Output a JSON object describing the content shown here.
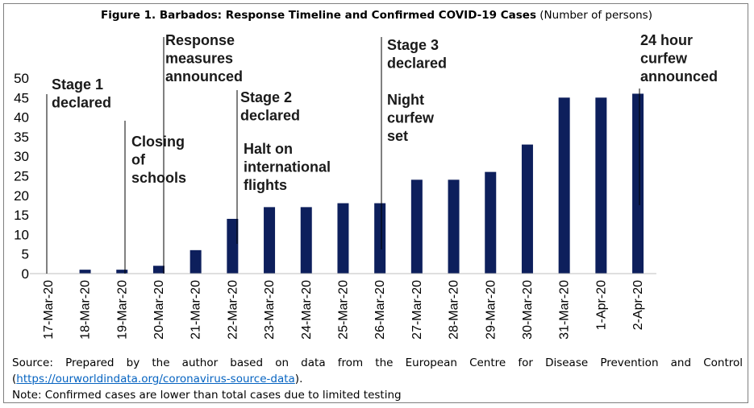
{
  "figure": {
    "title_bold": "Figure 1. Barbados: Response Timeline and Confirmed COVID-19 Cases",
    "title_rest": " (Number of persons)",
    "source_prefix": "Source: Prepared by the author based on data from the European Centre for Disease Prevention and Control (",
    "source_link": "https://ourworldindata.org/coronavirus-source-data",
    "source_suffix": ").",
    "note": "Note: Confirmed cases are lower than total cases due to limited testing"
  },
  "chart_data": {
    "type": "bar",
    "title": "Figure 1. Barbados: Response Timeline and Confirmed COVID-19 Cases (Number of persons)",
    "xlabel": "",
    "ylabel": "",
    "ylim": [
      0,
      50
    ],
    "yticks": [
      "0",
      "5",
      "10",
      "15",
      "20",
      "25",
      "30",
      "35",
      "40",
      "45",
      "50"
    ],
    "grid": false,
    "bar_color": "#0d1f5c",
    "categories": [
      "17-Mar-20",
      "18-Mar-20",
      "19-Mar-20",
      "20-Mar-20",
      "21-Mar-20",
      "22-Mar-20",
      "23-Mar-20",
      "24-Mar-20",
      "25-Mar-20",
      "26-Mar-20",
      "27-Mar-20",
      "28-Mar-20",
      "29-Mar-20",
      "30-Mar-20",
      "31-Mar-20",
      "1-Apr-20",
      "2-Apr-20"
    ],
    "values": [
      0,
      1,
      1,
      2,
      6,
      14,
      17,
      17,
      18,
      18,
      24,
      24,
      26,
      33,
      45,
      45,
      46
    ],
    "annotations": [
      {
        "category": "17-Mar-20",
        "lines": [
          "Stage 1",
          "declared"
        ]
      },
      {
        "category": "19-Mar-20",
        "lines": [
          "Closing",
          "of",
          "schools"
        ]
      },
      {
        "category": "20-Mar-20",
        "lines": [
          "Response",
          "measures",
          "announced"
        ]
      },
      {
        "category": "22-Mar-20",
        "lines": [
          "Stage 2",
          "declared"
        ]
      },
      {
        "category": "22-Mar-20",
        "lines": [
          "Halt on",
          "international",
          "flights"
        ]
      },
      {
        "category": "26-Mar-20",
        "lines": [
          "Stage 3",
          "declared"
        ]
      },
      {
        "category": "26-Mar-20",
        "lines": [
          "Night",
          "curfew",
          "set"
        ]
      },
      {
        "category": "2-Apr-20",
        "lines": [
          "24 hour",
          "curfew",
          "announced"
        ]
      }
    ]
  }
}
